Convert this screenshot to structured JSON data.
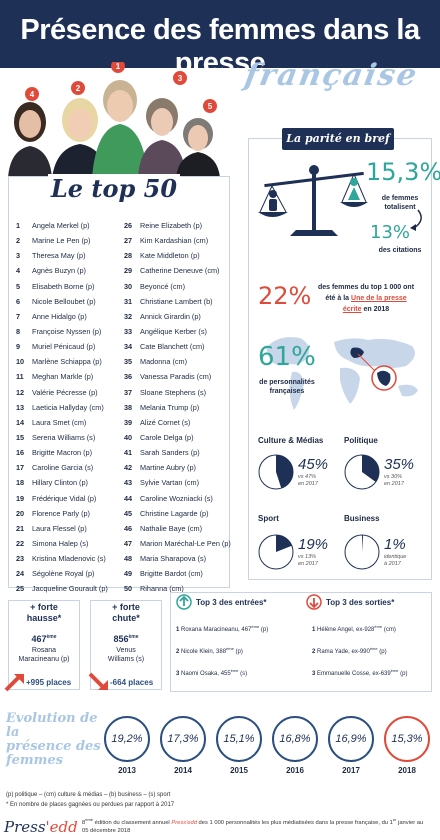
{
  "header": {
    "title": "Présence des femmes dans la presse",
    "subtitle": "française"
  },
  "portraits": {
    "badges": [
      "4",
      "2",
      "1",
      "3",
      "5"
    ]
  },
  "top50": {
    "title": "Le top 50",
    "left": [
      {
        "n": "1",
        "name": "Angela Merkel (p)"
      },
      {
        "n": "2",
        "name": "Marine Le Pen (p)"
      },
      {
        "n": "3",
        "name": "Theresa May (p)"
      },
      {
        "n": "4",
        "name": "Agnès Buzyn (p)"
      },
      {
        "n": "5",
        "name": "Elisabeth Borne (p)"
      },
      {
        "n": "6",
        "name": "Nicole Belloubet (p)"
      },
      {
        "n": "7",
        "name": "Anne Hidalgo (p)"
      },
      {
        "n": "8",
        "name": "Françoise Nyssen (p)"
      },
      {
        "n": "9",
        "name": "Muriel Pénicaud (p)"
      },
      {
        "n": "10",
        "name": "Marlène Schiappa (p)"
      },
      {
        "n": "11",
        "name": "Meghan Markle (p)"
      },
      {
        "n": "12",
        "name": "Valérie Pécresse (p)"
      },
      {
        "n": "13",
        "name": "Laeticia Hallyday (cm)"
      },
      {
        "n": "14",
        "name": "Laura Smet (cm)"
      },
      {
        "n": "15",
        "name": "Serena Williams (s)"
      },
      {
        "n": "16",
        "name": "Brigitte Macron (p)"
      },
      {
        "n": "17",
        "name": "Caroline Garcia (s)"
      },
      {
        "n": "18",
        "name": "Hillary Clinton (p)"
      },
      {
        "n": "19",
        "name": "Frédérique Vidal (p)"
      },
      {
        "n": "20",
        "name": "Florence Parly (p)"
      },
      {
        "n": "21",
        "name": "Laura Flessel (p)"
      },
      {
        "n": "22",
        "name": "Simona Halep (s)"
      },
      {
        "n": "23",
        "name": "Kristina Mladenovic (s)"
      },
      {
        "n": "24",
        "name": "Ségolène Royal (p)"
      },
      {
        "n": "25",
        "name": "Jacqueline Gourault (p)"
      }
    ],
    "right": [
      {
        "n": "26",
        "name": "Reine Elizabeth (p)"
      },
      {
        "n": "27",
        "name": "Kim Kardashian (cm)"
      },
      {
        "n": "28",
        "name": "Kate Middleton (p)"
      },
      {
        "n": "29",
        "name": "Catherine Deneuve (cm)"
      },
      {
        "n": "30",
        "name": "Beyoncé (cm)"
      },
      {
        "n": "31",
        "name": "Christiane Lambert (b)"
      },
      {
        "n": "32",
        "name": "Annick Girardin (p)"
      },
      {
        "n": "33",
        "name": "Angélique Kerber (s)"
      },
      {
        "n": "34",
        "name": "Cate Blanchett (cm)"
      },
      {
        "n": "35",
        "name": "Madonna (cm)"
      },
      {
        "n": "36",
        "name": "Vanessa Paradis (cm)"
      },
      {
        "n": "37",
        "name": "Sloane Stephens (s)"
      },
      {
        "n": "38",
        "name": "Melania Trump (p)"
      },
      {
        "n": "39",
        "name": "Alizé Cornet (s)"
      },
      {
        "n": "40",
        "name": "Carole Delga (p)"
      },
      {
        "n": "41",
        "name": "Sarah Sanders (p)"
      },
      {
        "n": "42",
        "name": "Martine Aubry (p)"
      },
      {
        "n": "43",
        "name": "Sylvie Vartan (cm)"
      },
      {
        "n": "44",
        "name": "Caroline Wozniacki (s)"
      },
      {
        "n": "45",
        "name": "Christine Lagarde (p)"
      },
      {
        "n": "46",
        "name": "Nathalie Baye (cm)"
      },
      {
        "n": "47",
        "name": "Marion Maréchal-Le Pen (p)"
      },
      {
        "n": "48",
        "name": "Maria Sharapova (s)"
      },
      {
        "n": "49",
        "name": "Brigitte Bardot (cm)"
      },
      {
        "n": "50",
        "name": "Rihanna (cm)"
      }
    ]
  },
  "parite": {
    "tag": "La parité en bref",
    "stat1_value": "15,3",
    "stat1_unit": "%",
    "stat1_text": "de femmes totalisent",
    "stat2_value": "13",
    "stat2_unit": "%",
    "stat2_text": "des citations",
    "stat3_value": "22",
    "stat3_unit": "%",
    "stat3_line1": "des femmes du top 1 000 ont",
    "stat3_line2a": "été à la ",
    "stat3_line2b": "Une de la presse",
    "stat3_line3a": "écrite",
    "stat3_line3b": " en 2018",
    "map_value": "61",
    "map_unit": "%",
    "map_text1": "de personnalités",
    "map_text2": "françaises",
    "pies": [
      {
        "label": "Culture & Médias",
        "pct": "45%",
        "prev1": "vs 47%",
        "prev2": "en 2017",
        "value": 45
      },
      {
        "label": "Politique",
        "pct": "35%",
        "prev1": "vs 30%",
        "prev2": "en 2017",
        "value": 35
      },
      {
        "label": "Sport",
        "pct": "19%",
        "prev1": "vs 13%",
        "prev2": "en 2017",
        "value": 19
      },
      {
        "label": "Business",
        "pct": "1%",
        "prev1": "identique",
        "prev2": "à 2017",
        "value": 1
      }
    ]
  },
  "movers": {
    "hausse": {
      "head1": "forte",
      "head2": "hausse*",
      "rank": "467",
      "suffix": "ème",
      "name1": "Rosana",
      "name2": "Maracineanu (p)",
      "delta": "+995 places"
    },
    "chute": {
      "head1": "forte",
      "head2": "chute*",
      "rank": "856",
      "suffix": "ème",
      "name1": "Venus",
      "name2": "Williams (s)",
      "delta": "-664 places"
    }
  },
  "entries": {
    "title": "Top 3 des entrées*",
    "items": [
      {
        "n": "1",
        "name": "Roxana Maracineanu, 467",
        "sup": "ème",
        "cat": " (p)"
      },
      {
        "n": "2",
        "name": "Nicole Klein, 388",
        "sup": "ème",
        "cat": " (p)"
      },
      {
        "n": "3",
        "name": "Naomi Osaka, 455",
        "sup": "ème",
        "cat": " (s)"
      }
    ]
  },
  "exits": {
    "title": "Top 3 des sorties*",
    "items": [
      {
        "n": "1",
        "name": "Hélène Angel, ex-928",
        "sup": "ème",
        "cat": " (cm)"
      },
      {
        "n": "2",
        "name": "Rama Yade, ex-990",
        "sup": "ème",
        "cat": " (p)"
      },
      {
        "n": "3",
        "name": "Emmanuelle Cosse, ex-639",
        "sup": "ème",
        "cat": " (p)"
      }
    ]
  },
  "evolution": {
    "title": [
      "Evolution de la",
      "présence des",
      "femmes"
    ],
    "items": [
      {
        "value": "19,2%",
        "year": "2013"
      },
      {
        "value": "17,3%",
        "year": "2014"
      },
      {
        "value": "15,1%",
        "year": "2015"
      },
      {
        "value": "16,8%",
        "year": "2016"
      },
      {
        "value": "16,9%",
        "year": "2017"
      },
      {
        "value": "15,3%",
        "year": "2018"
      }
    ]
  },
  "legend": {
    "line1": "(p) politique – (cm) culture & médias – (b) business – (s) sport",
    "line2": "* En nombre de places gagnées ou perdues par rapport à 2017"
  },
  "footer": {
    "logo_a": "Press",
    "logo_b": "'edd",
    "text_a": "8",
    "text_sup": "ème",
    "text_b": " édition du classement annuel ",
    "text_brand": "Press'edd",
    "text_c": " des 1 000 personnalités les plus médiatisées dans la presse française, du 1",
    "text_sup2": "er",
    "text_d": " janvier au",
    "text_e": "05 décembre 2018"
  },
  "colors": {
    "navy": "#1e3056",
    "teal": "#2ea79a",
    "red": "#e04a3a",
    "lightblue": "#a9c6e4"
  }
}
